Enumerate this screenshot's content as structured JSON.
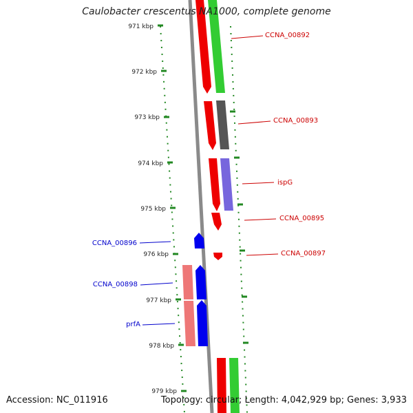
{
  "title": "Caulobacter crescentus NA1000, complete genome",
  "accession": "Accession: NC_011916",
  "topology": "Topology: circular; Length: 4,042,929 bp; Genes: 3,933",
  "scale_labels": [
    "971 kbp",
    "972 kbp",
    "973 kbp",
    "974 kbp",
    "975 kbp",
    "976 kbp",
    "977 kbp",
    "978 kbp",
    "979 kbp"
  ],
  "colors": {
    "forward_gene": "#ff0000",
    "forward_cds": "#33cc33",
    "reverse_gene": "#0000ff",
    "reverse_cds": "#ee7777",
    "pseudo": "#555555",
    "purple_cds": "#7766dd",
    "backbone": "#8a8a8a",
    "ticks": "#228822",
    "forward_label": "#cc0000",
    "reverse_label": "#0000cc"
  },
  "gene_labels": {
    "forward": [
      "CCNA_00892",
      "CCNA_00893",
      "ispG",
      "CCNA_00895",
      "CCNA_00897"
    ],
    "reverse": [
      "CCNA_00896",
      "CCNA_00898",
      "prfA"
    ]
  }
}
